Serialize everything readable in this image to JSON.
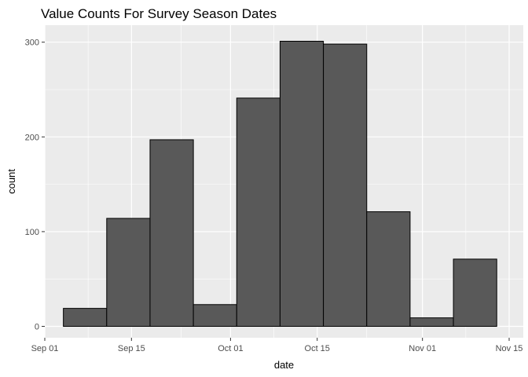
{
  "chart_data": {
    "type": "bar",
    "title": "Value Counts For Survey Season Dates",
    "xlabel": "date",
    "ylabel": "count",
    "x_ticks": [
      "Sep 01",
      "Sep 15",
      "Oct 01",
      "Oct 15",
      "Nov 01",
      "Nov 15"
    ],
    "y_ticks": [
      0,
      100,
      200,
      300
    ],
    "ylim": [
      -12,
      318
    ],
    "xlim": [
      "2019-09-01",
      "2019-11-15"
    ],
    "bins": [
      {
        "start": "2019-09-04",
        "end": "2019-09-11",
        "count": 19
      },
      {
        "start": "2019-09-11",
        "end": "2019-09-18",
        "count": 114
      },
      {
        "start": "2019-09-18",
        "end": "2019-09-25",
        "count": 197
      },
      {
        "start": "2019-09-25",
        "end": "2019-10-02",
        "count": 23
      },
      {
        "start": "2019-10-02",
        "end": "2019-10-09",
        "count": 241
      },
      {
        "start": "2019-10-09",
        "end": "2019-10-16",
        "count": 301
      },
      {
        "start": "2019-10-16",
        "end": "2019-10-23",
        "count": 298
      },
      {
        "start": "2019-10-23",
        "end": "2019-10-30",
        "count": 121
      },
      {
        "start": "2019-10-30",
        "end": "2019-11-06",
        "count": 9
      },
      {
        "start": "2019-11-06",
        "end": "2019-11-13",
        "count": 71
      }
    ],
    "grid": true,
    "colors": {
      "panel_background": "#ebebeb",
      "grid_major": "#ffffff",
      "bar_fill": "#595959",
      "bar_outline": "#000000"
    }
  }
}
